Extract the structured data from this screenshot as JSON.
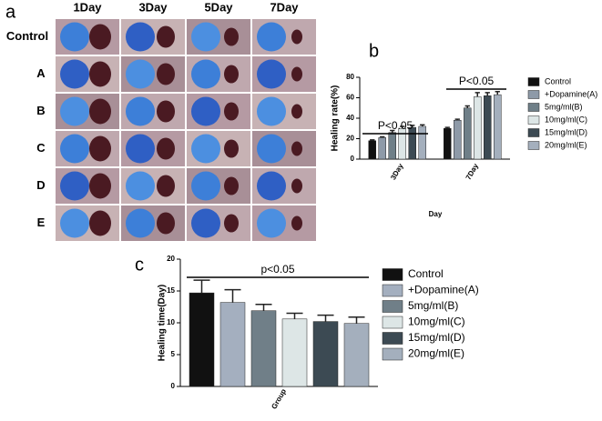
{
  "panel_a": {
    "label": "a",
    "columns": [
      "1Day",
      "3Day",
      "5Day",
      "7Day"
    ],
    "rows": [
      "Control",
      "A",
      "B",
      "C",
      "D",
      "E"
    ]
  },
  "chart_data": [
    {
      "type": "bar",
      "panel": "b",
      "y_label": "Healing rate(%)",
      "x_label": "Day",
      "categories": [
        "3Day",
        "7Day"
      ],
      "ylim": [
        0,
        80
      ],
      "yticks": [
        0,
        20,
        40,
        60,
        80
      ],
      "annotations": [
        "P<0.05",
        "P<0.05"
      ],
      "series": [
        {
          "name": "Control",
          "color": "#111111",
          "values": [
            18,
            30
          ],
          "errors": [
            0.8,
            1
          ]
        },
        {
          "name": "+Dopamine(A)",
          "color": "#8e9aa8",
          "values": [
            21,
            38
          ],
          "errors": [
            0.8,
            1
          ]
        },
        {
          "name": "5mg/ml(B)",
          "color": "#6f7f88",
          "values": [
            26,
            50
          ],
          "errors": [
            2,
            2
          ]
        },
        {
          "name": "10mg/ml(C)",
          "color": "#dde6e6",
          "values": [
            30,
            61
          ],
          "errors": [
            2,
            4
          ]
        },
        {
          "name": "15mg/ml(D)",
          "color": "#3c4a53",
          "values": [
            31,
            62
          ],
          "errors": [
            2,
            3
          ]
        },
        {
          "name": "20mg/ml(E)",
          "color": "#a4afbd",
          "values": [
            32,
            63
          ],
          "errors": [
            1.5,
            3
          ]
        }
      ]
    },
    {
      "type": "bar",
      "panel": "c",
      "y_label": "Healing time(Day)",
      "categories": [
        "Group"
      ],
      "ylim": [
        0,
        20
      ],
      "yticks": [
        0,
        5,
        10,
        15,
        20
      ],
      "annotations": [
        "p<0.05"
      ],
      "series": [
        {
          "name": "Control",
          "color": "#111111",
          "values": [
            14.7
          ],
          "errors": [
            2
          ]
        },
        {
          "name": "+Dopamine(A)",
          "color": "#a4afbf",
          "values": [
            13.2
          ],
          "errors": [
            2
          ]
        },
        {
          "name": "5mg/ml(B)",
          "color": "#707f88",
          "values": [
            11.9
          ],
          "errors": [
            1
          ]
        },
        {
          "name": "10mg/ml(C)",
          "color": "#dde6e6",
          "values": [
            10.6
          ],
          "errors": [
            0.9
          ]
        },
        {
          "name": "15mg/ml(D)",
          "color": "#3c4a53",
          "values": [
            10.2
          ],
          "errors": [
            1
          ]
        },
        {
          "name": "20mg/ml(E)",
          "color": "#a4afbd",
          "values": [
            9.9
          ],
          "errors": [
            1
          ]
        }
      ]
    }
  ]
}
